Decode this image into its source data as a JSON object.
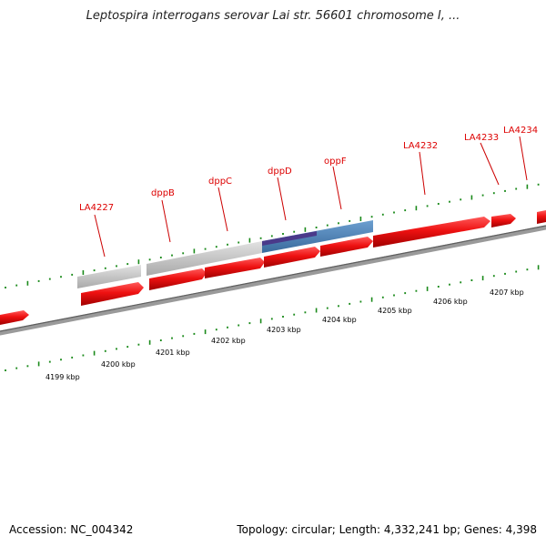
{
  "title": "Leptospira interrogans serovar Lai str. 56601 chromosome I, ...",
  "footer": {
    "accession": "Accession: NC_004342",
    "summary": "Topology: circular; Length: 4,332,241 bp; Genes: 4,398"
  },
  "colors": {
    "gene_red": "#ee1111",
    "gray_gene": "#c0c0c0",
    "blue_gene": "#4a7fb5",
    "purple_highlight": "#4a3a8a",
    "backbone": "#808080",
    "tick_green": "#1a8a1a",
    "label_red": "#dd0000"
  },
  "gene_labels": [
    "LA4227",
    "dppB",
    "dppC",
    "dppD",
    "oppF",
    "LA4232",
    "LA4233",
    "LA4234"
  ],
  "kbp_labels": [
    "4199 kbp",
    "4200 kbp",
    "4201 kbp",
    "4202 kbp",
    "4203 kbp",
    "4204 kbp",
    "4205 kbp",
    "4206 kbp",
    "4207 kbp"
  ]
}
